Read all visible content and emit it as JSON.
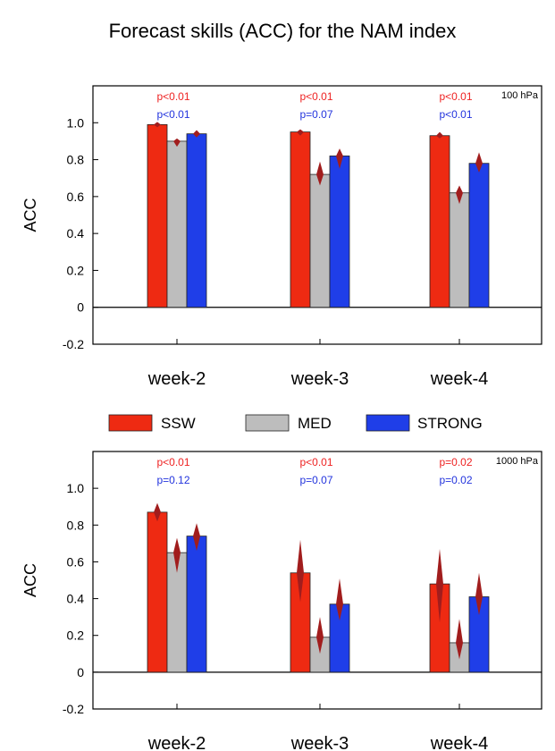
{
  "title": "Forecast skills (ACC) for the NAM index",
  "legend": [
    {
      "key": "SSW",
      "label": "SSW"
    },
    {
      "key": "MED",
      "label": "MED"
    },
    {
      "key": "STRONG",
      "label": "STRONG"
    }
  ],
  "colors": {
    "SSW": "#ee2a12",
    "MED": "#bdbdbd",
    "STRONG": "#1f3ee8",
    "errorbar": "#a11d1d",
    "p_red": "#ee2222",
    "p_blue": "#2233dd"
  },
  "chart_data": [
    {
      "type": "bar",
      "panel_label": "100 hPa",
      "ylabel": "ACC",
      "ylim": [
        -0.2,
        1.2
      ],
      "yticks": [
        "1.0",
        "0.8",
        "0.6",
        "0.4",
        "0.2",
        "0",
        "-0.2"
      ],
      "categories": [
        "week-2",
        "week-3",
        "week-4"
      ],
      "series": [
        {
          "name": "SSW",
          "values": [
            0.99,
            0.95,
            0.93
          ],
          "error_low": [
            0.99,
            0.93,
            0.92
          ],
          "error_high": [
            0.99,
            0.96,
            0.95
          ]
        },
        {
          "name": "MED",
          "values": [
            0.9,
            0.72,
            0.62
          ],
          "error_low": [
            0.87,
            0.66,
            0.56
          ],
          "error_high": [
            0.91,
            0.79,
            0.66
          ]
        },
        {
          "name": "STRONG",
          "values": [
            0.94,
            0.82,
            0.78
          ],
          "error_low": [
            0.92,
            0.75,
            0.73
          ],
          "error_high": [
            0.96,
            0.86,
            0.84
          ]
        }
      ],
      "p_values_red": [
        "p<0.01",
        "p<0.01",
        "p<0.01"
      ],
      "p_values_blue": [
        "p<0.01",
        "p=0.07",
        "p<0.01"
      ]
    },
    {
      "type": "bar",
      "panel_label": "1000 hPa",
      "ylabel": "ACC",
      "ylim": [
        -0.2,
        1.2
      ],
      "yticks": [
        "1.0",
        "0.8",
        "0.6",
        "0.4",
        "0.2",
        "0",
        "-0.2"
      ],
      "categories": [
        "week-2",
        "week-3",
        "week-4"
      ],
      "series": [
        {
          "name": "SSW",
          "values": [
            0.87,
            0.54,
            0.48
          ],
          "error_low": [
            0.82,
            0.38,
            0.27
          ],
          "error_high": [
            0.92,
            0.72,
            0.67
          ]
        },
        {
          "name": "MED",
          "values": [
            0.65,
            0.19,
            0.16
          ],
          "error_low": [
            0.54,
            0.1,
            0.07
          ],
          "error_high": [
            0.73,
            0.3,
            0.29
          ]
        },
        {
          "name": "STRONG",
          "values": [
            0.74,
            0.37,
            0.41
          ],
          "error_low": [
            0.66,
            0.28,
            0.31
          ],
          "error_high": [
            0.81,
            0.51,
            0.54
          ]
        }
      ],
      "p_values_red": [
        "p<0.01",
        "p<0.01",
        "p=0.02"
      ],
      "p_values_blue": [
        "p=0.12",
        "p=0.07",
        "p=0.02"
      ]
    }
  ]
}
